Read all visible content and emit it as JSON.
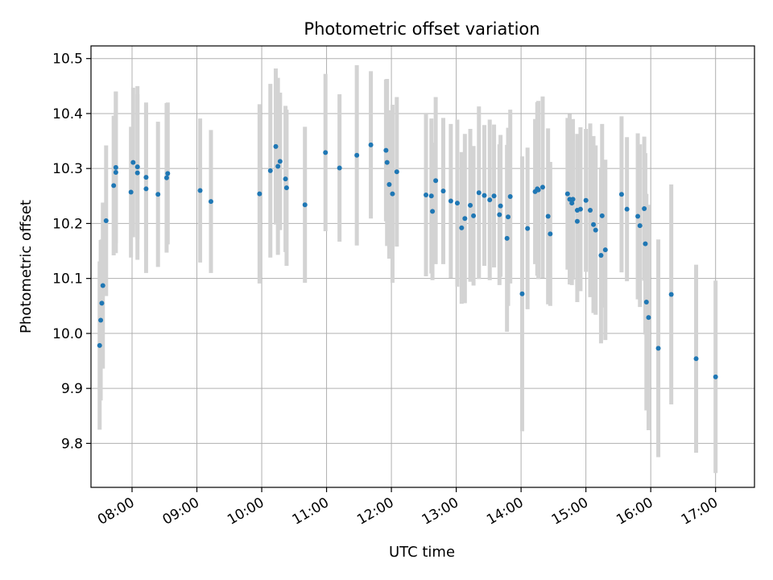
{
  "chart_data": {
    "type": "scatter",
    "title": "Photometric offset variation",
    "xlabel": "UTC time",
    "ylabel": "Photometric offset",
    "xlim": [
      "07:22",
      "17:36"
    ],
    "ylim": [
      9.72,
      10.523
    ],
    "x_ticks": [
      "08:00",
      "09:00",
      "10:00",
      "11:00",
      "12:00",
      "13:00",
      "14:00",
      "15:00",
      "16:00",
      "17:00"
    ],
    "y_ticks": [
      "9.8",
      "9.9",
      "10.0",
      "10.1",
      "10.2",
      "10.3",
      "10.4",
      "10.5"
    ],
    "grid": true,
    "colors": {
      "points": "#1f77b4",
      "errorbars": "#d3d3d3",
      "grid": "#b0b0b0"
    },
    "series": [
      {
        "x": [
          "07:30",
          "07:31",
          "07:32",
          "07:33",
          "07:36",
          "07:43",
          "07:45",
          "07:45",
          "07:59",
          "08:01",
          "08:05",
          "08:05",
          "08:13",
          "08:13",
          "08:24",
          "08:32",
          "08:33",
          "09:03",
          "09:13",
          "09:58",
          "10:08",
          "10:13",
          "10:15",
          "10:17",
          "10:22",
          "10:23",
          "10:40",
          "10:59",
          "11:12",
          "11:28",
          "11:41",
          "11:55",
          "11:56",
          "11:58",
          "12:01",
          "12:05",
          "12:32",
          "12:37",
          "12:38",
          "12:41",
          "12:48",
          "12:55",
          "13:01",
          "13:05",
          "13:08",
          "13:13",
          "13:16",
          "13:21",
          "13:26",
          "13:31",
          "13:35",
          "13:40",
          "13:41",
          "13:47",
          "13:48",
          "13:50",
          "14:01",
          "14:06",
          "14:13",
          "14:15",
          "14:16",
          "14:20",
          "14:25",
          "14:27",
          "14:43",
          "14:45",
          "14:47",
          "14:48",
          "14:52",
          "14:52",
          "14:55",
          "15:00",
          "15:04",
          "15:07",
          "15:09",
          "15:14",
          "15:15",
          "15:18",
          "15:33",
          "15:38",
          "15:48",
          "15:50",
          "15:54",
          "15:55",
          "15:56",
          "15:58",
          "16:07",
          "16:19",
          "16:42",
          "17:00"
        ],
        "y": [
          9.978,
          10.024,
          10.055,
          10.087,
          10.205,
          10.269,
          10.293,
          10.302,
          10.257,
          10.311,
          10.292,
          10.303,
          10.284,
          10.263,
          10.253,
          10.283,
          10.291,
          10.26,
          10.24,
          10.254,
          10.296,
          10.34,
          10.304,
          10.313,
          10.281,
          10.265,
          10.234,
          10.329,
          10.301,
          10.324,
          10.343,
          10.333,
          10.311,
          10.271,
          10.254,
          10.294,
          10.252,
          10.25,
          10.222,
          10.278,
          10.259,
          10.241,
          10.237,
          10.192,
          10.209,
          10.233,
          10.214,
          10.256,
          10.251,
          10.243,
          10.25,
          10.216,
          10.232,
          10.173,
          10.212,
          10.249,
          10.072,
          10.191,
          10.258,
          10.263,
          10.261,
          10.266,
          10.213,
          10.181,
          10.254,
          10.244,
          10.237,
          10.244,
          10.204,
          10.224,
          10.226,
          10.242,
          10.224,
          10.198,
          10.188,
          10.142,
          10.214,
          10.152,
          10.253,
          10.226,
          10.213,
          10.196,
          10.227,
          10.163,
          10.057,
          10.029,
          9.973,
          10.071,
          9.954,
          9.921
        ],
        "yerr": [
          0.153,
          0.146,
          0.116,
          0.151,
          0.137,
          0.127,
          0.147,
          0.138,
          0.119,
          0.136,
          0.158,
          0.132,
          0.136,
          0.153,
          0.132,
          0.136,
          0.129,
          0.131,
          0.13,
          0.163,
          0.158,
          0.142,
          0.161,
          0.125,
          0.133,
          0.142,
          0.142,
          0.143,
          0.134,
          0.164,
          0.134,
          0.129,
          0.152,
          0.135,
          0.162,
          0.136,
          0.148,
          0.141,
          0.125,
          0.152,
          0.133,
          0.14,
          0.152,
          0.138,
          0.154,
          0.139,
          0.127,
          0.157,
          0.128,
          0.146,
          0.13,
          0.128,
          0.129,
          0.17,
          0.162,
          0.158,
          0.25,
          0.147,
          0.132,
          0.158,
          0.162,
          0.165,
          0.16,
          0.131,
          0.138,
          0.155,
          0.149,
          0.146,
          0.147,
          0.139,
          0.149,
          0.13,
          0.158,
          0.161,
          0.154,
          0.16,
          0.167,
          0.164,
          0.142,
          0.131,
          0.151,
          0.148,
          0.131,
          0.165,
          0.197,
          0.205,
          0.198,
          0.2,
          0.171,
          0.175
        ]
      }
    ]
  }
}
